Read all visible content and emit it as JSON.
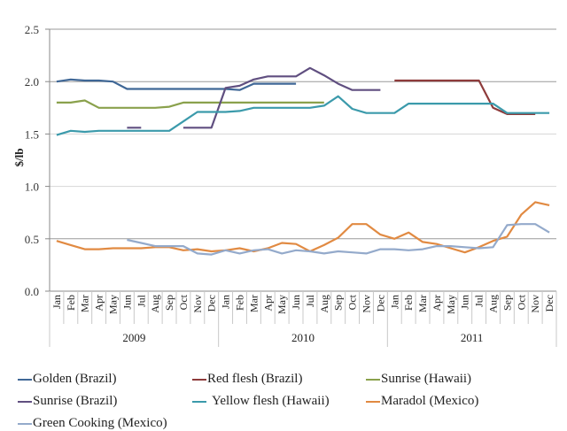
{
  "chart_data": {
    "type": "line",
    "title": "",
    "xlabel": "",
    "ylabel": "$/lb",
    "ylim": [
      0.0,
      2.5
    ],
    "yticks": [
      "0.0",
      "0.5",
      "1.0",
      "1.5",
      "2.0",
      "2.5"
    ],
    "grid": true,
    "legend_position": "bottom",
    "years": [
      "2009",
      "2010",
      "2011"
    ],
    "months": [
      "Jan",
      "Feb",
      "Mar",
      "Apr",
      "May",
      "Jun",
      "Jul",
      "Aug",
      "Sep",
      "Oct",
      "Nov",
      "Dec"
    ],
    "series": [
      {
        "name": "Golden (Brazil)",
        "color": "#3f6796",
        "values": [
          2.0,
          2.02,
          2.01,
          2.01,
          2.0,
          1.93,
          1.93,
          1.93,
          1.93,
          1.93,
          1.93,
          1.93,
          1.93,
          1.92,
          1.98,
          1.98,
          1.98,
          1.98,
          null,
          null,
          null,
          null,
          null,
          null,
          null,
          null,
          null,
          null,
          null,
          null,
          null,
          null,
          null,
          null,
          null,
          null
        ]
      },
      {
        "name": "Red flesh (Brazil)",
        "color": "#8e3b3b",
        "values": [
          null,
          null,
          null,
          null,
          null,
          null,
          null,
          null,
          null,
          null,
          null,
          null,
          null,
          null,
          null,
          null,
          null,
          null,
          null,
          null,
          null,
          null,
          null,
          null,
          2.01,
          2.01,
          2.01,
          2.01,
          2.01,
          2.01,
          2.01,
          1.75,
          1.69,
          1.69,
          1.69,
          null
        ]
      },
      {
        "name": "Sunrise (Hawaii)",
        "color": "#8aa14c",
        "values": [
          1.8,
          1.8,
          1.82,
          1.75,
          1.75,
          1.75,
          1.75,
          1.75,
          1.76,
          1.8,
          1.8,
          1.8,
          1.8,
          1.8,
          1.8,
          1.8,
          1.8,
          1.8,
          1.8,
          1.8,
          null,
          null,
          null,
          null,
          null,
          null,
          null,
          null,
          null,
          null,
          null,
          null,
          null,
          null,
          null,
          null
        ]
      },
      {
        "name": "Sunrise (Brazil)",
        "color": "#604f80",
        "values": [
          null,
          null,
          null,
          null,
          null,
          1.56,
          1.56,
          null,
          null,
          1.56,
          1.56,
          1.56,
          1.94,
          1.96,
          2.02,
          2.05,
          2.05,
          2.05,
          2.13,
          2.06,
          1.98,
          1.92,
          1.92,
          1.92,
          null,
          null,
          null,
          null,
          null,
          null,
          null,
          null,
          null,
          null,
          null,
          null
        ]
      },
      {
        "name": "Yellow flesh (Hawaii)",
        "color": "#3b9aab",
        "values": [
          1.49,
          1.53,
          1.52,
          1.53,
          1.53,
          1.53,
          1.53,
          1.53,
          1.53,
          1.62,
          1.71,
          1.71,
          1.71,
          1.72,
          1.75,
          1.75,
          1.75,
          1.75,
          1.75,
          1.77,
          1.86,
          1.74,
          1.7,
          1.7,
          1.7,
          1.79,
          1.79,
          1.79,
          1.79,
          1.79,
          1.79,
          1.79,
          1.7,
          1.7,
          1.7,
          1.7
        ]
      },
      {
        "name": "Maradol (Mexico)",
        "color": "#e18a42",
        "values": [
          0.48,
          0.44,
          0.4,
          0.4,
          0.41,
          0.41,
          0.41,
          0.42,
          0.42,
          0.39,
          0.4,
          0.38,
          0.39,
          0.41,
          0.38,
          0.41,
          0.46,
          0.45,
          0.38,
          0.44,
          0.51,
          0.64,
          0.64,
          0.54,
          0.5,
          0.56,
          0.47,
          0.45,
          0.41,
          0.37,
          0.42,
          0.48,
          0.52,
          0.73,
          0.85,
          0.82
        ]
      },
      {
        "name": "Green Cooking (Mexico)",
        "color": "#94aacb",
        "values": [
          null,
          null,
          null,
          null,
          null,
          0.49,
          0.46,
          0.43,
          0.43,
          0.43,
          0.36,
          0.35,
          0.39,
          0.36,
          0.39,
          0.4,
          0.36,
          0.39,
          0.38,
          0.36,
          0.38,
          0.37,
          0.36,
          0.4,
          0.4,
          0.39,
          0.4,
          0.43,
          0.43,
          0.42,
          0.41,
          0.42,
          0.63,
          0.64,
          0.64,
          0.56
        ]
      }
    ]
  }
}
